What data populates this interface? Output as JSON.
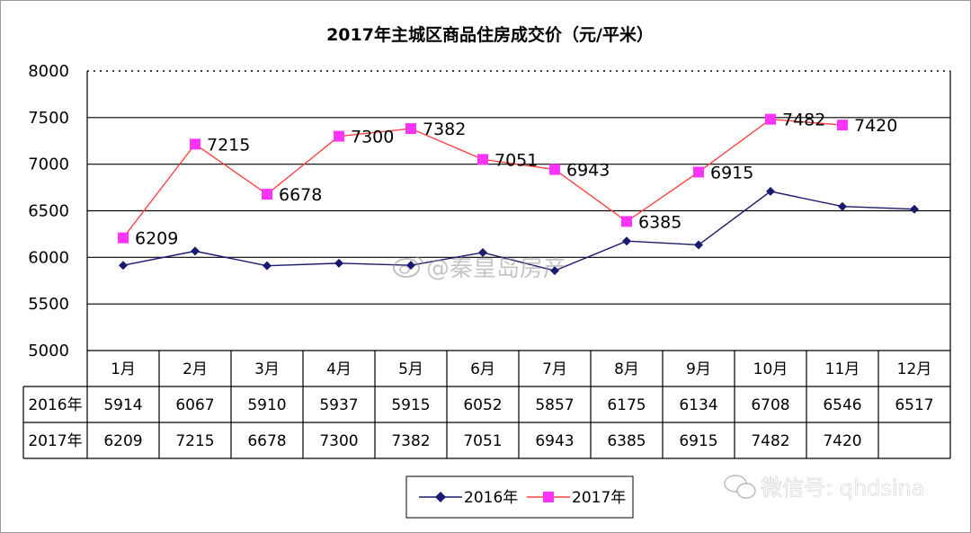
{
  "chart_data": {
    "type": "line",
    "title": "2017年主城区商品住房成交价（元/平米）",
    "categories": [
      "1月",
      "2月",
      "3月",
      "4月",
      "5月",
      "6月",
      "7月",
      "8月",
      "9月",
      "10月",
      "11月",
      "12月"
    ],
    "ylim": [
      5000,
      8000
    ],
    "yticks": [
      "5000",
      "5500",
      "6000",
      "6500",
      "7000",
      "7500",
      "8000"
    ],
    "grid": true,
    "legend_position": "bottom",
    "series": [
      {
        "name": "2016年",
        "color": "#1a1a6e",
        "marker": "diamond",
        "values": [
          5914,
          6067,
          5910,
          5937,
          5915,
          6052,
          5857,
          6175,
          6134,
          6708,
          6546,
          6517
        ]
      },
      {
        "name": "2017年",
        "color": "#ff55ff",
        "marker": "square",
        "values": [
          6209,
          7215,
          6678,
          7300,
          7382,
          7051,
          6943,
          6385,
          6915,
          7482,
          7420,
          null
        ]
      }
    ],
    "data_labels_series": "2017年",
    "table": {
      "rows": [
        {
          "label": "2016年",
          "cells": [
            "5914",
            "6067",
            "5910",
            "5937",
            "5915",
            "6052",
            "5857",
            "6175",
            "6134",
            "6708",
            "6546",
            "6517"
          ]
        },
        {
          "label": "2017年",
          "cells": [
            "6209",
            "7215",
            "6678",
            "7300",
            "7382",
            "7051",
            "6943",
            "6385",
            "6915",
            "7482",
            "7420",
            ""
          ]
        }
      ]
    }
  },
  "watermarks": {
    "center": "@秦皇岛房产",
    "bottom_right": "微信号: qhdsina"
  }
}
